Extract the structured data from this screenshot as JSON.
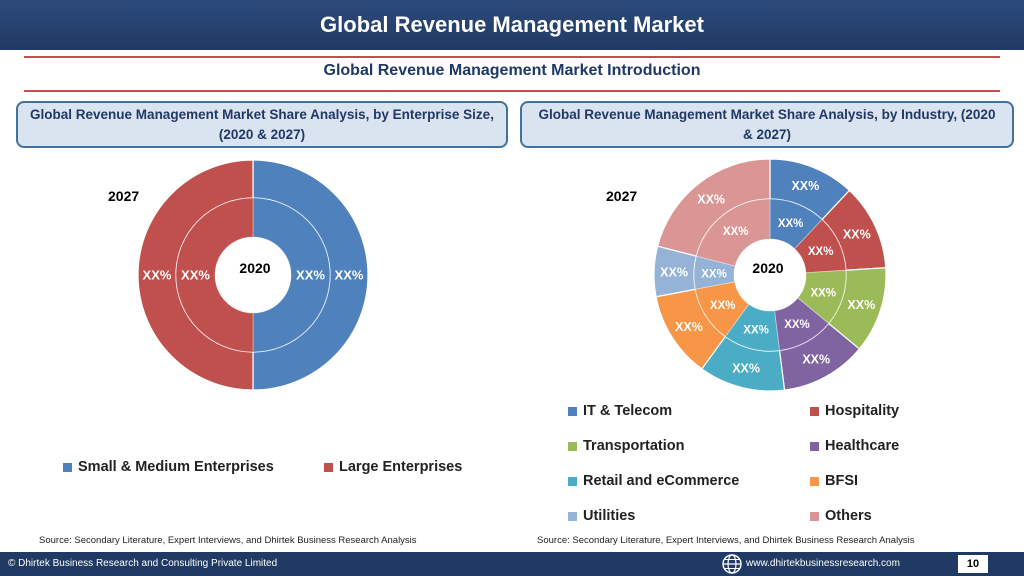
{
  "header": {
    "title": "Global Revenue Management Market"
  },
  "subtitle": "Global Revenue Management Market  Introduction",
  "left_panel": {
    "title": "Global Revenue Management Market  Share Analysis, by Enterprise Size, (2020 & 2027)"
  },
  "right_panel": {
    "title": "Global Revenue Management Market  Share Analysis, by Industry, (2020 & 2027)"
  },
  "sources": {
    "left": "Source: Secondary Literature, Expert Interviews, and Dhirtek Business Research Analysis",
    "right": "Source: Secondary Literature, Expert Interviews, and Dhirtek Business Research Analysis"
  },
  "footer": {
    "copyright": "© Dhirtek Business Research and Consulting Private Limited",
    "url": "www.dhirtekbusinessresearch.com",
    "page": "10"
  },
  "chart_data": [
    {
      "type": "pie",
      "variant": "doughnut",
      "outer_label": "2027",
      "inner_label": "2020",
      "categories": [
        "Small & Medium Enterprises",
        "Large Enterprises"
      ],
      "colors": [
        "#4f81bd",
        "#c0504d"
      ],
      "series": [
        {
          "ring": "2027",
          "values": [
            50,
            50
          ],
          "labels": [
            "XX%",
            "XX%"
          ]
        },
        {
          "ring": "2020",
          "values": [
            50,
            50
          ],
          "labels": [
            "XX%",
            "XX%"
          ]
        }
      ],
      "legend_position": "bottom"
    },
    {
      "type": "pie",
      "variant": "doughnut",
      "outer_label": "2027",
      "inner_label": "2020",
      "categories": [
        "IT & Telecom",
        "Hospitality",
        "Transportation",
        "Healthcare",
        "Retail and eCommerce",
        "BFSI",
        "Utilities",
        "Others"
      ],
      "colors": [
        "#4f81bd",
        "#c0504d",
        "#9bbb59",
        "#8064a2",
        "#4bacc6",
        "#f79646",
        "#95b3d7",
        "#d99694"
      ],
      "series": [
        {
          "ring": "2027",
          "values": [
            12,
            12,
            12,
            12,
            12,
            12,
            7,
            21
          ],
          "labels": [
            "XX%",
            "XX%",
            "XX%",
            "XX%",
            "XX%",
            "XX%",
            "XX%",
            "XX%"
          ]
        },
        {
          "ring": "2020",
          "values": [
            12,
            12,
            12,
            12,
            12,
            12,
            7,
            21
          ],
          "labels": [
            "XX%",
            "XX%",
            "XX%",
            "XX%",
            "XX%",
            "XX%",
            "XX%",
            "XX%"
          ]
        }
      ],
      "legend_position": "bottom"
    }
  ]
}
